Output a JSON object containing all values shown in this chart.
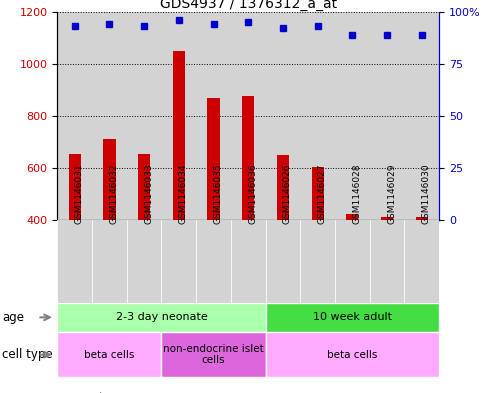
{
  "title": "GDS4937 / 1376312_a_at",
  "samples": [
    "GSM1146031",
    "GSM1146032",
    "GSM1146033",
    "GSM1146034",
    "GSM1146035",
    "GSM1146036",
    "GSM1146026",
    "GSM1146027",
    "GSM1146028",
    "GSM1146029",
    "GSM1146030"
  ],
  "counts": [
    655,
    710,
    655,
    1050,
    870,
    875,
    650,
    605,
    425,
    410,
    410
  ],
  "percentile_ranks": [
    93,
    94,
    93,
    96,
    94,
    95,
    92,
    93,
    89,
    89,
    89
  ],
  "ylim_left": [
    400,
    1200
  ],
  "ylim_right": [
    0,
    100
  ],
  "yticks_left": [
    400,
    600,
    800,
    1000,
    1200
  ],
  "yticks_right": [
    0,
    25,
    50,
    75,
    100
  ],
  "ytick_labels_right": [
    "0",
    "25",
    "50",
    "75",
    "100%"
  ],
  "bar_color": "#cc0000",
  "dot_color": "#0000cc",
  "grid_color": "#000000",
  "background_color": "#ffffff",
  "col_bg_color": "#d3d3d3",
  "age_groups": [
    {
      "label": "2-3 day neonate",
      "start": 0,
      "end": 6,
      "color": "#aaffaa"
    },
    {
      "label": "10 week adult",
      "start": 6,
      "end": 11,
      "color": "#44dd44"
    }
  ],
  "cell_type_groups": [
    {
      "label": "beta cells",
      "start": 0,
      "end": 3,
      "color": "#ffaaff"
    },
    {
      "label": "non-endocrine islet\ncells",
      "start": 3,
      "end": 6,
      "color": "#dd66dd"
    },
    {
      "label": "beta cells",
      "start": 6,
      "end": 11,
      "color": "#ffaaff"
    }
  ],
  "legend_count_color": "#cc0000",
  "legend_dot_color": "#0000cc",
  "axis_color_left": "#cc0000",
  "axis_color_right": "#0000cc"
}
